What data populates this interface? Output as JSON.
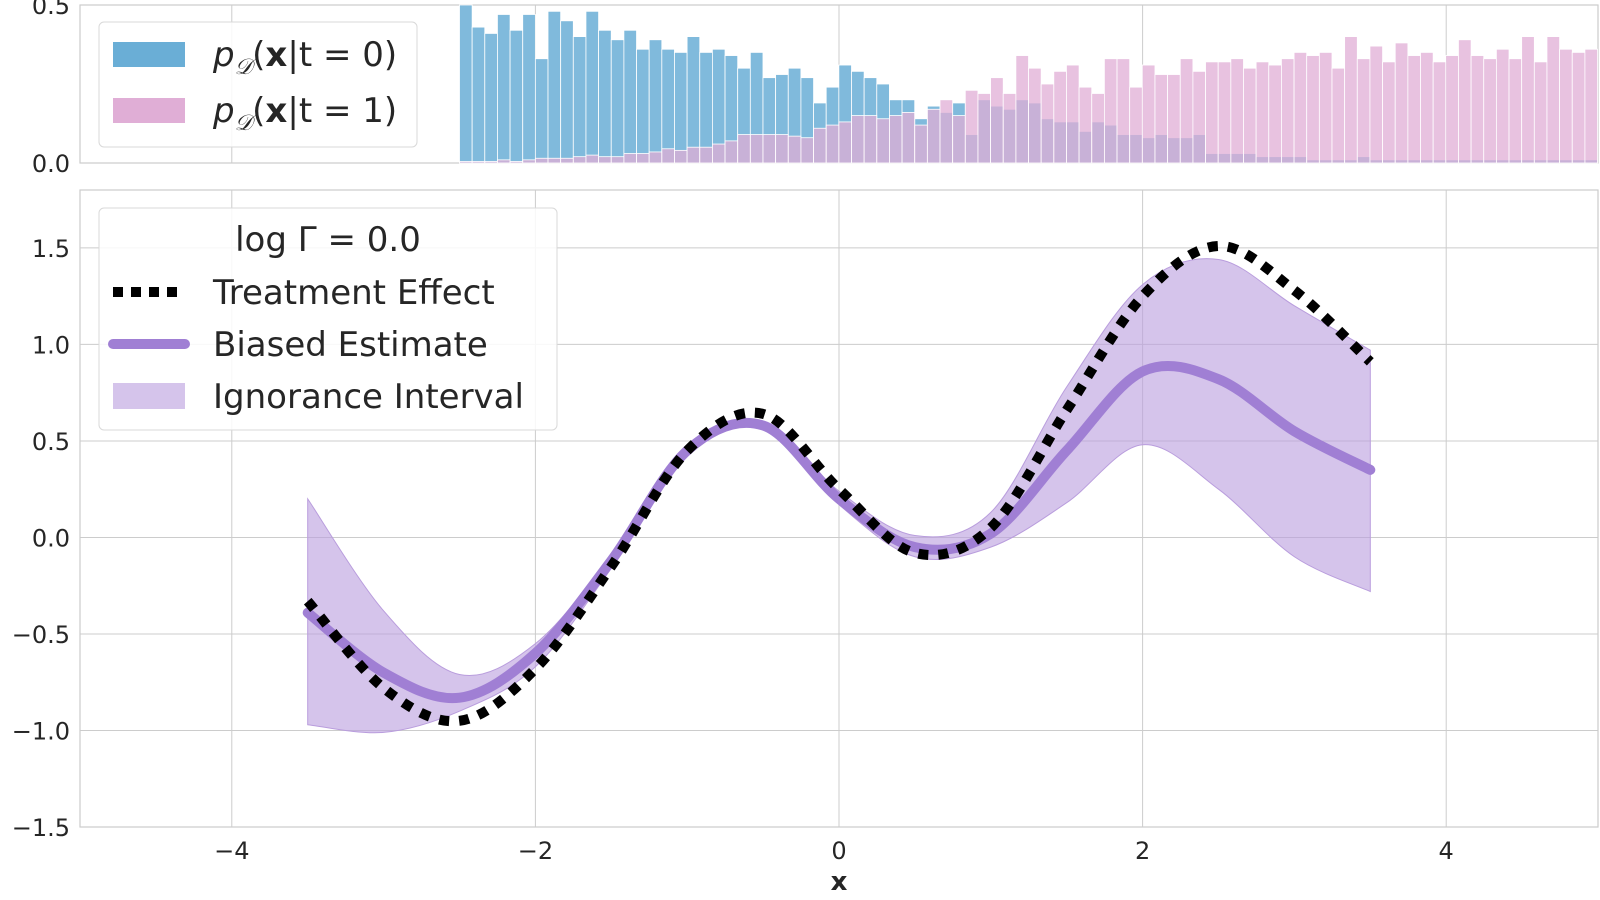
{
  "chart_data": [
    {
      "type": "bar",
      "panel": "histogram",
      "xlim": [
        -5,
        5
      ],
      "ylim": [
        0,
        0.5
      ],
      "yticks": [
        "0.0",
        "0.5"
      ],
      "grid": true,
      "legend_position": "top-left",
      "bin_start": -2.5,
      "bin_width": 0.0833,
      "series": [
        {
          "name": "p𝒟(x|t = 0)",
          "label_prefix": "p",
          "label_subscript": "𝒟",
          "label_bold": "x",
          "label_suffix": "|t = 0)",
          "color": "#6aaed6",
          "values": [
            0.5,
            0.43,
            0.41,
            0.47,
            0.42,
            0.47,
            0.33,
            0.48,
            0.45,
            0.4,
            0.48,
            0.42,
            0.39,
            0.42,
            0.36,
            0.39,
            0.36,
            0.35,
            0.4,
            0.35,
            0.36,
            0.34,
            0.3,
            0.35,
            0.27,
            0.28,
            0.3,
            0.27,
            0.19,
            0.24,
            0.31,
            0.29,
            0.27,
            0.25,
            0.2,
            0.2,
            0.14,
            0.18,
            0.16,
            0.19,
            0.09,
            0.2,
            0.18,
            0.17,
            0.2,
            0.19,
            0.14,
            0.13,
            0.13,
            0.1,
            0.13,
            0.12,
            0.09,
            0.09,
            0.08,
            0.09,
            0.08,
            0.08,
            0.09,
            0.03,
            0.03,
            0.03,
            0.03,
            0.02,
            0.02,
            0.02,
            0.02,
            0.01,
            0.01,
            0.01,
            0.01,
            0.02,
            0.01,
            0.01,
            0.01,
            0.01,
            0.01,
            0.01,
            0.01,
            0.01,
            0.01,
            0.01,
            0.01,
            0.01,
            0.01,
            0.01,
            0.01,
            0.01,
            0.01,
            0.01
          ]
        },
        {
          "name": "p𝒟(x|t = 1)",
          "label_prefix": "p",
          "label_subscript": "𝒟",
          "label_bold": "x",
          "label_suffix": "|t = 1)",
          "color": "#e0aed6",
          "values": [
            0.005,
            0.005,
            0.005,
            0.01,
            0.005,
            0.01,
            0.015,
            0.015,
            0.015,
            0.02,
            0.025,
            0.02,
            0.02,
            0.03,
            0.03,
            0.035,
            0.045,
            0.04,
            0.05,
            0.05,
            0.06,
            0.07,
            0.09,
            0.09,
            0.09,
            0.09,
            0.085,
            0.08,
            0.11,
            0.12,
            0.13,
            0.15,
            0.15,
            0.14,
            0.15,
            0.16,
            0.12,
            0.17,
            0.2,
            0.15,
            0.23,
            0.22,
            0.27,
            0.22,
            0.34,
            0.3,
            0.25,
            0.29,
            0.31,
            0.24,
            0.22,
            0.33,
            0.33,
            0.24,
            0.31,
            0.28,
            0.28,
            0.33,
            0.29,
            0.32,
            0.32,
            0.33,
            0.3,
            0.32,
            0.31,
            0.33,
            0.35,
            0.34,
            0.35,
            0.3,
            0.4,
            0.33,
            0.37,
            0.32,
            0.38,
            0.34,
            0.35,
            0.32,
            0.34,
            0.39,
            0.34,
            0.33,
            0.36,
            0.33,
            0.4,
            0.32,
            0.4,
            0.36,
            0.35,
            0.36
          ]
        }
      ]
    },
    {
      "type": "line",
      "panel": "main",
      "xlim": [
        -5,
        5
      ],
      "ylim": [
        -1.5,
        1.8
      ],
      "xticks": [
        "−4",
        "−2",
        "0",
        "2",
        "4"
      ],
      "yticks": [
        "−1.5",
        "−1.0",
        "−0.5",
        "0.0",
        "0.5",
        "1.0",
        "1.5"
      ],
      "xlabel": "x",
      "grid": true,
      "legend_position": "top-left",
      "legend_title": "log Γ = 0.0",
      "x_range": [
        -3.5,
        3.5
      ],
      "series": [
        {
          "name": "Treatment Effect",
          "style": "dotted",
          "color": "#000000",
          "x": [
            -3.5,
            -3.0,
            -2.5,
            -2.0,
            -1.5,
            -1.0,
            -0.5,
            0.0,
            0.5,
            1.0,
            1.5,
            2.0,
            2.5,
            3.0,
            3.5
          ],
          "y": [
            -0.33,
            -0.78,
            -0.95,
            -0.68,
            -0.15,
            0.45,
            0.64,
            0.25,
            -0.08,
            0.05,
            0.66,
            1.25,
            1.51,
            1.28,
            0.91
          ]
        },
        {
          "name": "Biased Estimate",
          "style": "solid",
          "color": "#a07fd4",
          "x": [
            -3.5,
            -3.0,
            -2.5,
            -2.0,
            -1.5,
            -1.0,
            -0.5,
            0.0,
            0.5,
            1.0,
            1.5,
            2.0,
            2.5,
            3.0,
            3.5
          ],
          "y": [
            -0.39,
            -0.7,
            -0.83,
            -0.6,
            -0.12,
            0.45,
            0.58,
            0.2,
            -0.05,
            0.02,
            0.45,
            0.86,
            0.82,
            0.55,
            0.35
          ]
        },
        {
          "name": "Ignorance Interval",
          "style": "band",
          "color": "#b99ddd",
          "x": [
            -3.5,
            -3.0,
            -2.5,
            -2.0,
            -1.5,
            -1.0,
            -0.5,
            0.0,
            0.5,
            1.0,
            1.5,
            2.0,
            2.5,
            3.0,
            3.5
          ],
          "lower": [
            -0.97,
            -1.01,
            -0.9,
            -0.67,
            -0.16,
            0.42,
            0.57,
            0.17,
            -0.1,
            -0.05,
            0.18,
            0.48,
            0.25,
            -0.1,
            -0.28
          ],
          "upper": [
            0.2,
            -0.38,
            -0.71,
            -0.55,
            -0.09,
            0.48,
            0.6,
            0.24,
            0.01,
            0.13,
            0.78,
            1.31,
            1.44,
            1.2,
            0.97
          ]
        }
      ]
    }
  ]
}
